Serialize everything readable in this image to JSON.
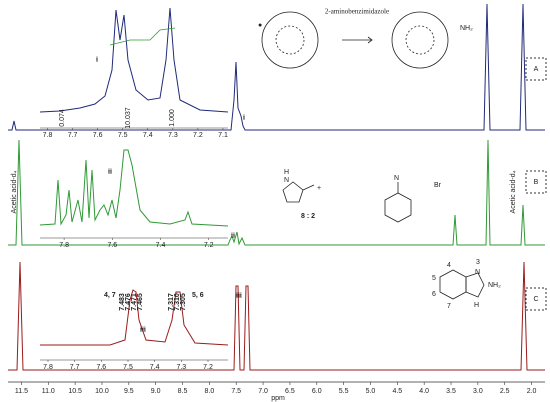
{
  "chart_data": {
    "type": "line",
    "xlabel": "ppm",
    "xlim": [
      11.75,
      1.75
    ],
    "xticks": [
      11.5,
      {
        "value": 11,
        "label": "11.0"
      },
      10.5,
      {
        "value": 10,
        "label": "10.0"
      },
      9.5,
      {
        "value": 9,
        "label": "9.0"
      },
      8.5,
      {
        "value": 8,
        "label": "8.0"
      },
      7.5,
      {
        "value": 7,
        "label": "7.0"
      },
      6.5,
      {
        "value": 6,
        "label": "6.0"
      },
      5.5,
      {
        "value": 5,
        "label": "5.0"
      },
      4.5,
      {
        "value": 4,
        "label": "4.0"
      },
      3.5,
      {
        "value": 3,
        "label": "3.0"
      },
      2.5,
      {
        "value": 2,
        "label": "2.0"
      }
    ],
    "spectra": [
      {
        "name": "A",
        "color": "#1f2a7a",
        "peak_label": "i"
      },
      {
        "name": "B",
        "color": "#2f9a35",
        "peak_label": "ii"
      },
      {
        "name": "C",
        "color": "#9b1b1b",
        "peak_label": "iii"
      }
    ],
    "solvent_label": "Acetic acid-d₄",
    "insets": [
      {
        "label": "i",
        "xlim": [
          7.83,
          7.08
        ],
        "xticks": [
          7.8,
          7.7,
          7.6,
          7.5,
          7.4,
          7.3,
          7.2,
          7.1
        ],
        "integrals": [
          "0.074",
          "10.037",
          "1.000"
        ]
      },
      {
        "label": "ii",
        "xlim": [
          7.9,
          7.12
        ],
        "xticks": [
          7.8,
          7.6,
          7.4,
          7.2
        ]
      },
      {
        "label": "iii",
        "xlim": [
          7.83,
          7.125
        ],
        "xticks": [
          7.8,
          7.7,
          7.6,
          7.5,
          7.4,
          7.3,
          7.2
        ],
        "peak_groups": [
          {
            "label": "4, 7",
            "shifts": [
              7.483,
              7.476,
              7.471,
              7.465
            ]
          },
          {
            "label": "5, 6",
            "shifts": [
              7.317,
              {
                "value": 7.31,
                "label": "7.310"
              },
              7.305
            ]
          }
        ]
      }
    ],
    "scheme": {
      "reagent": "2-aminobenzimidazole",
      "ratio": "8 : 2",
      "anion": "Br",
      "amine": "NH₂",
      "n": "N",
      "h": "H",
      "numbers": [
        "3",
        "4",
        "5",
        "6",
        "7"
      ]
    }
  }
}
